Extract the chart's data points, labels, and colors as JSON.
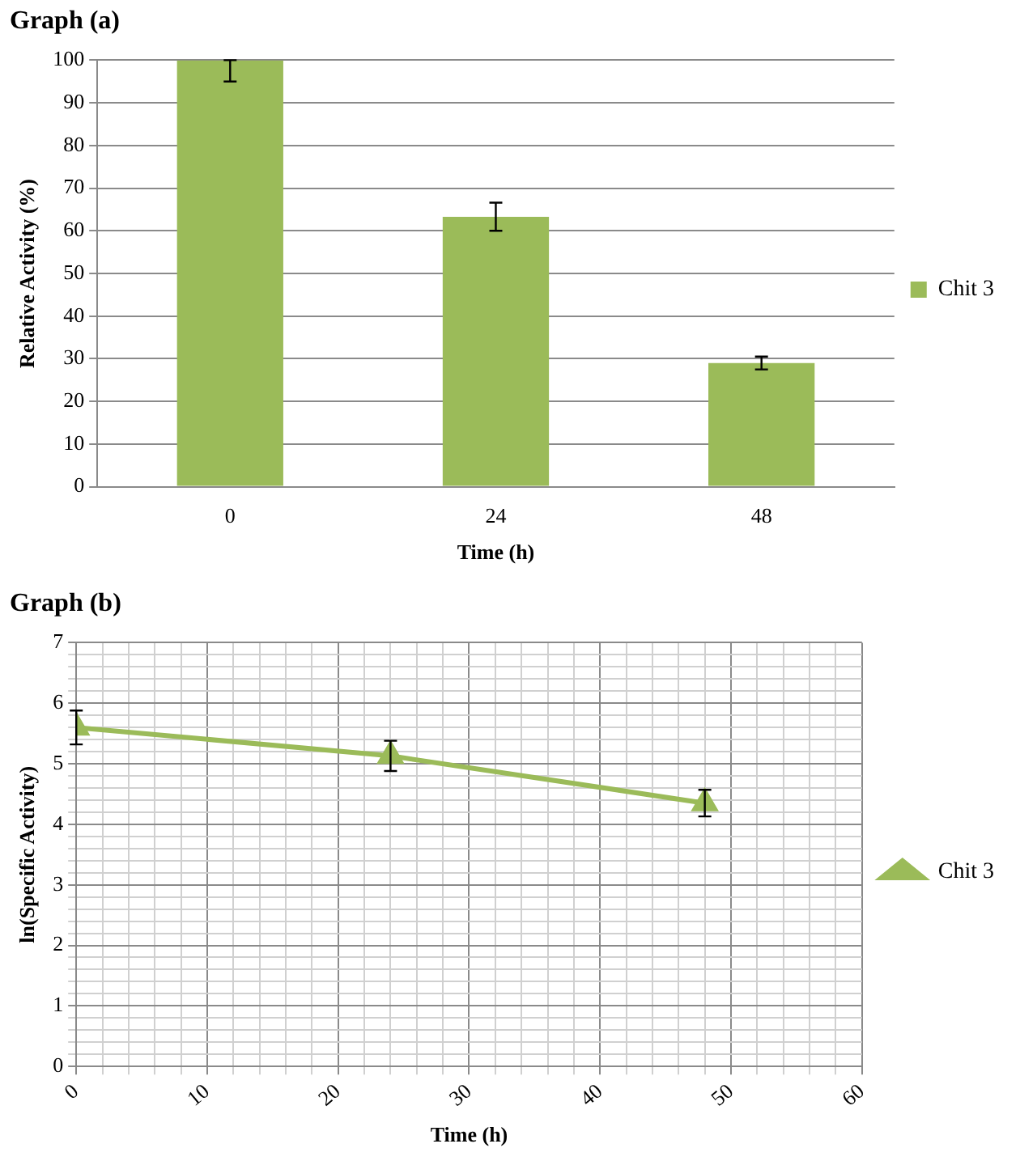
{
  "chart_data": [
    {
      "type": "bar",
      "title": "Graph (a)",
      "xlabel": "Time (h)",
      "ylabel": "Relative Activity (%)",
      "categories": [
        "0",
        "24",
        "48"
      ],
      "series": [
        {
          "name": "Chit 3",
          "color": "#9bbb59",
          "values": [
            100,
            63.3,
            29
          ],
          "errors": [
            [
              95,
              100
            ],
            3.3,
            1.5
          ]
        }
      ],
      "ylim": [
        0,
        100
      ],
      "yticks": [
        0,
        10,
        20,
        30,
        40,
        50,
        60,
        70,
        80,
        90,
        100
      ],
      "grid": "y",
      "legend": "right"
    },
    {
      "type": "line",
      "title": "Graph (b)",
      "xlabel": "Time (h)",
      "ylabel": "ln(Specific Activity)",
      "x": [
        0,
        24,
        48
      ],
      "series": [
        {
          "name": "Chit 3",
          "color": "#9bbb59",
          "values": [
            5.6,
            5.13,
            4.35
          ],
          "errors": [
            0.28,
            0.25,
            0.22
          ]
        }
      ],
      "xlim": [
        0,
        60
      ],
      "xticks": [
        0,
        {
          "value": 2,
          "label": null
        },
        {
          "value": 4,
          "label": null
        },
        {
          "value": 6,
          "label": null
        },
        {
          "value": 8,
          "label": null
        },
        10,
        {
          "value": 12,
          "label": null
        },
        {
          "value": 14,
          "label": null
        },
        {
          "value": 16,
          "label": null
        },
        {
          "value": 18,
          "label": null
        },
        20,
        {
          "value": 22,
          "label": null
        },
        {
          "value": 24,
          "label": null
        },
        {
          "value": 26,
          "label": null
        },
        {
          "value": 28,
          "label": null
        },
        30,
        {
          "value": 32,
          "label": null
        },
        {
          "value": 34,
          "label": null
        },
        {
          "value": 36,
          "label": null
        },
        {
          "value": 38,
          "label": null
        },
        40,
        {
          "value": 42,
          "label": null
        },
        {
          "value": 44,
          "label": null
        },
        {
          "value": 46,
          "label": null
        },
        {
          "value": 48,
          "label": null
        },
        50,
        {
          "value": 52,
          "label": null
        },
        {
          "value": 54,
          "label": null
        },
        {
          "value": 56,
          "label": null
        },
        {
          "value": 58,
          "label": null
        },
        60
      ],
      "ylim": [
        0,
        7
      ],
      "yticks": [
        0,
        {
          "value": 0.2,
          "label": null
        },
        {
          "value": 0.4,
          "label": null
        },
        {
          "value": 0.6,
          "label": null
        },
        {
          "value": 0.8,
          "label": null
        },
        1,
        {
          "value": 1.2,
          "label": null
        },
        {
          "value": 1.4,
          "label": null
        },
        {
          "value": 1.6,
          "label": null
        },
        {
          "value": 1.8,
          "label": null
        },
        2,
        {
          "value": 2.2,
          "label": null
        },
        {
          "value": 2.4,
          "label": null
        },
        {
          "value": 2.6,
          "label": null
        },
        {
          "value": 2.8,
          "label": null
        },
        3,
        {
          "value": 3.2,
          "label": null
        },
        {
          "value": 3.4,
          "label": null
        },
        {
          "value": 3.6,
          "label": null
        },
        {
          "value": 3.8,
          "label": null
        },
        4,
        {
          "value": 4.2,
          "label": null
        },
        {
          "value": 4.4,
          "label": null
        },
        {
          "value": 4.6,
          "label": null
        },
        {
          "value": 4.8,
          "label": null
        },
        5,
        {
          "value": 5.2,
          "label": null
        },
        {
          "value": 5.4,
          "label": null
        },
        {
          "value": 5.6,
          "label": null
        },
        {
          "value": 5.8,
          "label": null
        },
        6,
        {
          "value": 6.2,
          "label": null
        },
        {
          "value": 6.4,
          "label": null
        },
        {
          "value": 6.6,
          "label": null
        },
        {
          "value": 6.8,
          "label": null
        },
        7
      ],
      "grid": true,
      "marker": "triangle",
      "line_style": "solid",
      "legend": "right"
    }
  ]
}
